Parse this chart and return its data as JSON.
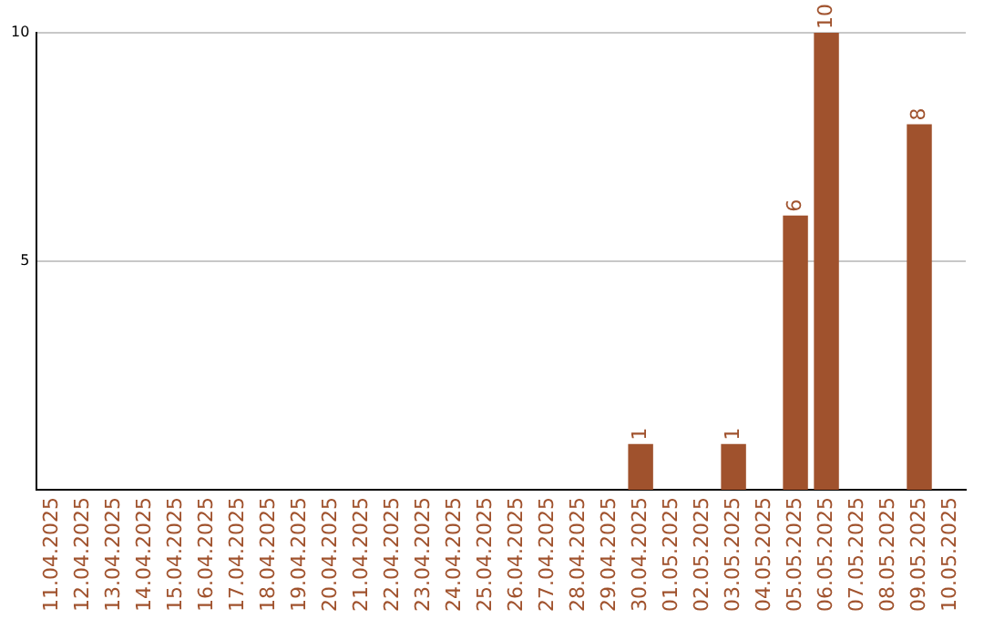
{
  "chart_data": {
    "type": "bar",
    "categories": [
      "11.04.2025",
      "12.04.2025",
      "13.04.2025",
      "14.04.2025",
      "15.04.2025",
      "16.04.2025",
      "17.04.2025",
      "18.04.2025",
      "19.04.2025",
      "20.04.2025",
      "21.04.2025",
      "22.04.2025",
      "23.04.2025",
      "24.04.2025",
      "25.04.2025",
      "26.04.2025",
      "27.04.2025",
      "28.04.2025",
      "29.04.2025",
      "30.04.2025",
      "01.05.2025",
      "02.05.2025",
      "03.05.2025",
      "04.05.2025",
      "05.05.2025",
      "06.05.2025",
      "07.05.2025",
      "08.05.2025",
      "09.05.2025",
      "10.05.2025"
    ],
    "values": [
      null,
      null,
      null,
      null,
      null,
      null,
      null,
      null,
      null,
      null,
      null,
      null,
      null,
      null,
      null,
      null,
      null,
      null,
      null,
      1,
      null,
      null,
      1,
      null,
      6,
      10,
      null,
      null,
      8,
      null
    ],
    "color": "#a0522d",
    "ylim": [
      0,
      10
    ],
    "yticks": [
      5,
      10
    ],
    "grid": "y",
    "data_labels": true
  }
}
